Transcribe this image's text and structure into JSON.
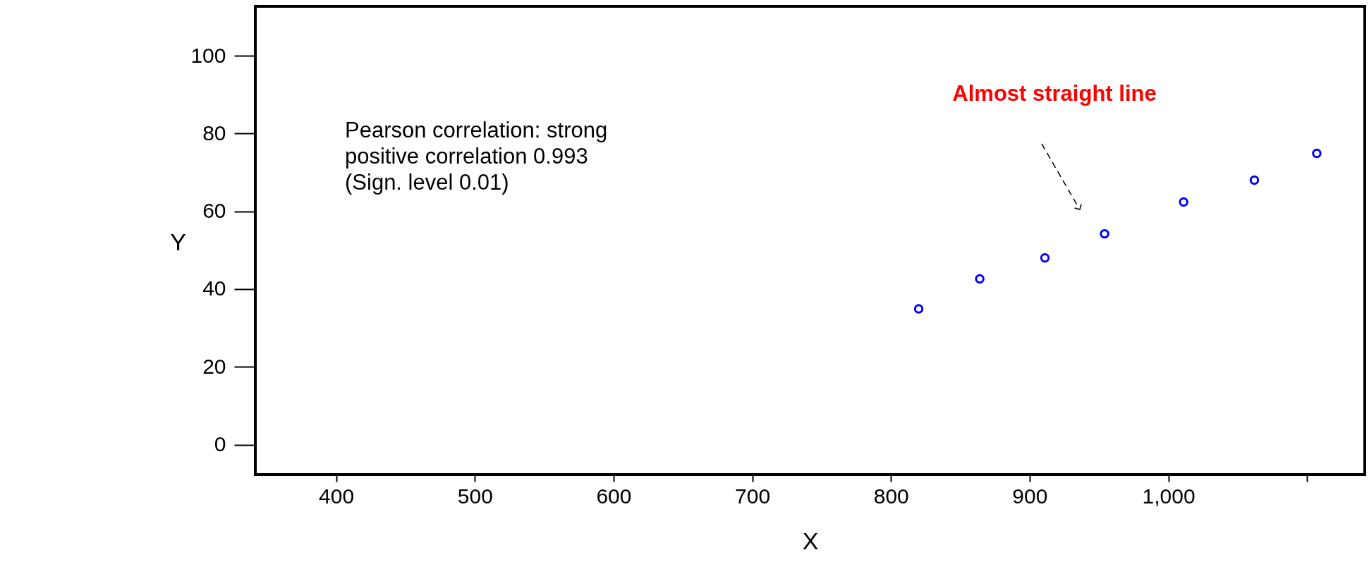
{
  "chart_data": {
    "type": "scatter",
    "xlabel": "X",
    "ylabel": "Y",
    "x": [
      820,
      864,
      911,
      954,
      1011,
      1062,
      1107
    ],
    "series": [
      {
        "color": "#0000ff",
        "values": [
          34.9,
          42.6,
          48.0,
          54.2,
          62.4,
          68.0,
          74.9
        ]
      }
    ],
    "xlim": [
      341.7,
      1141.6
    ],
    "ylim": [
      -7.7,
      112.7
    ],
    "xticks": [
      400,
      500,
      600,
      700,
      800,
      900,
      {
        "value": 1000,
        "label": "1,000"
      },
      {
        "value": 1100,
        "label": null
      }
    ],
    "yticks": [
      0,
      20,
      40,
      60,
      80,
      100
    ],
    "grid": false,
    "marker": "circle",
    "annotations": [
      "Pearson correlation: strong\npositive correlation 0.993\n(Sign. level 0.01)",
      "Almost straight line"
    ]
  }
}
